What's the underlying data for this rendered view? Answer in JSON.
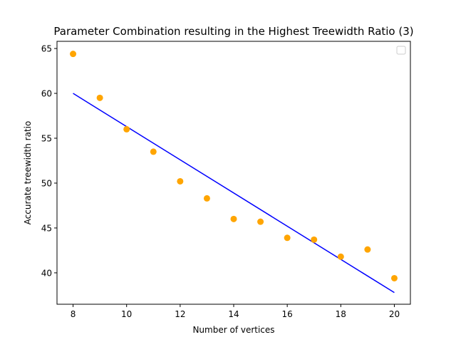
{
  "chart_data": {
    "type": "scatter",
    "title": "Parameter Combination resulting in the Highest Treewidth Ratio (3)",
    "xlabel": "Number of vertices",
    "ylabel": "Accurate treewidth ratio",
    "xlim": [
      7.4,
      20.6
    ],
    "ylim": [
      36.5,
      65.8
    ],
    "xticks": [
      8,
      10,
      12,
      14,
      16,
      18,
      20
    ],
    "yticks": [
      40,
      45,
      50,
      55,
      60,
      65
    ],
    "grid": false,
    "legend": {
      "placement": "top-right",
      "entries": []
    },
    "series": [
      {
        "kind": "scatter",
        "color": "#ffa500",
        "x": [
          8,
          9,
          10,
          11,
          12,
          13,
          14,
          15,
          16,
          17,
          18,
          19,
          20
        ],
        "y": [
          64.4,
          59.5,
          56.0,
          53.5,
          50.2,
          48.3,
          46.0,
          45.7,
          43.9,
          43.7,
          41.8,
          42.6,
          39.4
        ]
      },
      {
        "kind": "line",
        "color": "#0000ff",
        "x": [
          8,
          20
        ],
        "y": [
          60.0,
          37.8
        ]
      }
    ]
  }
}
